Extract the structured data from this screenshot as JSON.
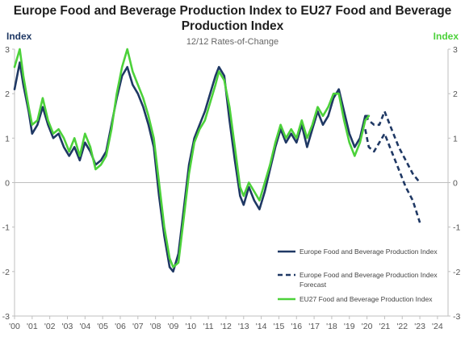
{
  "chart_data": {
    "type": "line",
    "title_lines": [
      "Europe Food and Beverage Production Index to EU27 Food and Beverage",
      "Production Index"
    ],
    "subtitle": "12/12 Rates-of-Change",
    "ylabel_left": "Index",
    "ylabel_right": "Index",
    "ylim": [
      -3,
      3
    ],
    "yticks": [
      "3",
      "2",
      "1",
      "0",
      "-1",
      "-2",
      "-3"
    ],
    "xlim": [
      2000,
      2024.6
    ],
    "xticks": [
      "'00",
      "'01",
      "'02",
      "'03",
      "'04",
      "'05",
      "'06",
      "'07",
      "'08",
      "'09",
      "'10",
      "'11",
      "'12",
      "'13",
      "'14",
      "'15",
      "'16",
      "'17",
      "'18",
      "'19",
      "'20",
      "'21",
      "'22",
      "'23",
      "'24"
    ],
    "grid": false,
    "legend_position": "bottom-right",
    "colors": {
      "europe": "#1f3864",
      "eu27": "#4cd13a",
      "axis": "#bfbfbf"
    },
    "series": [
      {
        "name": "Europe Food and Beverage Production Index",
        "style": "solid",
        "x": [
          2000.0,
          2000.3,
          2000.5,
          2000.8,
          2001.0,
          2001.3,
          2001.6,
          2001.9,
          2002.2,
          2002.5,
          2002.8,
          2003.1,
          2003.4,
          2003.7,
          2004.0,
          2004.3,
          2004.6,
          2004.9,
          2005.2,
          2005.5,
          2005.8,
          2006.1,
          2006.4,
          2006.7,
          2007.0,
          2007.3,
          2007.6,
          2007.9,
          2008.2,
          2008.5,
          2008.8,
          2009.0,
          2009.3,
          2009.6,
          2009.9,
          2010.2,
          2010.5,
          2010.8,
          2011.1,
          2011.4,
          2011.6,
          2011.9,
          2012.2,
          2012.5,
          2012.8,
          2013.0,
          2013.3,
          2013.6,
          2013.9,
          2014.2,
          2014.5,
          2014.8,
          2015.1,
          2015.4,
          2015.7,
          2016.0,
          2016.3,
          2016.6,
          2016.9,
          2017.2,
          2017.5,
          2017.8,
          2018.1,
          2018.4,
          2018.7,
          2019.0,
          2019.3,
          2019.6,
          2019.9,
          2020.1
        ],
        "values": [
          2.1,
          2.7,
          2.2,
          1.6,
          1.1,
          1.3,
          1.7,
          1.3,
          1.0,
          1.1,
          0.8,
          0.6,
          0.8,
          0.5,
          0.9,
          0.7,
          0.4,
          0.5,
          0.7,
          1.3,
          1.9,
          2.4,
          2.6,
          2.2,
          2.0,
          1.7,
          1.3,
          0.8,
          -0.3,
          -1.2,
          -1.9,
          -2.0,
          -1.6,
          -0.6,
          0.4,
          1.0,
          1.3,
          1.6,
          2.0,
          2.4,
          2.6,
          2.4,
          1.4,
          0.5,
          -0.3,
          -0.5,
          -0.1,
          -0.4,
          -0.6,
          -0.2,
          0.3,
          0.8,
          1.2,
          0.9,
          1.1,
          0.9,
          1.3,
          0.8,
          1.2,
          1.6,
          1.3,
          1.5,
          1.9,
          2.1,
          1.6,
          1.1,
          0.8,
          1.0,
          1.5,
          1.5
        ]
      },
      {
        "name": "Europe Food and Beverage Production Index Forecast",
        "style": "dashed",
        "x": [
          2019.9,
          2020.1,
          2020.4,
          2020.7,
          2021.0,
          2021.4,
          2021.8,
          2022.2,
          2022.6,
          2023.0
        ],
        "values": [
          1.5,
          1.4,
          1.3,
          1.3,
          1.6,
          1.2,
          0.8,
          0.5,
          0.2,
          0.0
        ]
      },
      {
        "name": "Europe Food and Beverage Production Index Forecast",
        "style": "dashed",
        "x": [
          2019.9,
          2020.1,
          2020.4,
          2020.7,
          2021.0,
          2021.4,
          2021.8,
          2022.2,
          2022.6,
          2023.0
        ],
        "values": [
          1.2,
          0.8,
          0.7,
          0.9,
          1.1,
          0.7,
          0.3,
          -0.1,
          -0.4,
          -0.9
        ]
      },
      {
        "name": "EU27 Food and Beverage Production Index",
        "style": "solid",
        "x": [
          2000.0,
          2000.3,
          2000.5,
          2000.8,
          2001.0,
          2001.3,
          2001.6,
          2001.9,
          2002.2,
          2002.5,
          2002.8,
          2003.1,
          2003.4,
          2003.7,
          2004.0,
          2004.3,
          2004.6,
          2004.9,
          2005.2,
          2005.5,
          2005.8,
          2006.1,
          2006.4,
          2006.7,
          2007.0,
          2007.3,
          2007.6,
          2007.9,
          2008.2,
          2008.5,
          2008.8,
          2009.0,
          2009.3,
          2009.6,
          2009.9,
          2010.2,
          2010.5,
          2010.8,
          2011.1,
          2011.4,
          2011.6,
          2011.9,
          2012.2,
          2012.5,
          2012.8,
          2013.0,
          2013.3,
          2013.6,
          2013.9,
          2014.2,
          2014.5,
          2014.8,
          2015.1,
          2015.4,
          2015.7,
          2016.0,
          2016.3,
          2016.6,
          2016.9,
          2017.2,
          2017.5,
          2017.8,
          2018.1,
          2018.4,
          2018.7,
          2019.0,
          2019.3,
          2019.6,
          2019.9,
          2020.1
        ],
        "values": [
          2.6,
          3.0,
          2.4,
          1.7,
          1.3,
          1.4,
          1.9,
          1.4,
          1.1,
          1.2,
          1.0,
          0.7,
          1.0,
          0.6,
          1.1,
          0.8,
          0.3,
          0.4,
          0.6,
          1.2,
          2.0,
          2.6,
          3.0,
          2.5,
          2.2,
          1.9,
          1.5,
          1.0,
          0.0,
          -1.0,
          -1.7,
          -1.9,
          -1.8,
          -0.8,
          0.2,
          0.9,
          1.2,
          1.4,
          1.8,
          2.2,
          2.5,
          2.3,
          1.7,
          0.8,
          -0.1,
          -0.3,
          0.0,
          -0.2,
          -0.4,
          0.0,
          0.4,
          0.9,
          1.3,
          1.0,
          1.2,
          1.0,
          1.4,
          1.0,
          1.3,
          1.7,
          1.5,
          1.7,
          2.0,
          2.0,
          1.4,
          0.9,
          0.6,
          0.9,
          1.4,
          1.5
        ]
      }
    ],
    "legend": [
      {
        "label": "Europe Food and Beverage Production Index",
        "style": "solid",
        "color": "#1f3864"
      },
      {
        "label": "Europe Food and Beverage Production Index Forecast",
        "style": "dashed",
        "color": "#1f3864"
      },
      {
        "label": "EU27 Food and Beverage Production Index",
        "style": "solid",
        "color": "#4cd13a"
      }
    ]
  }
}
